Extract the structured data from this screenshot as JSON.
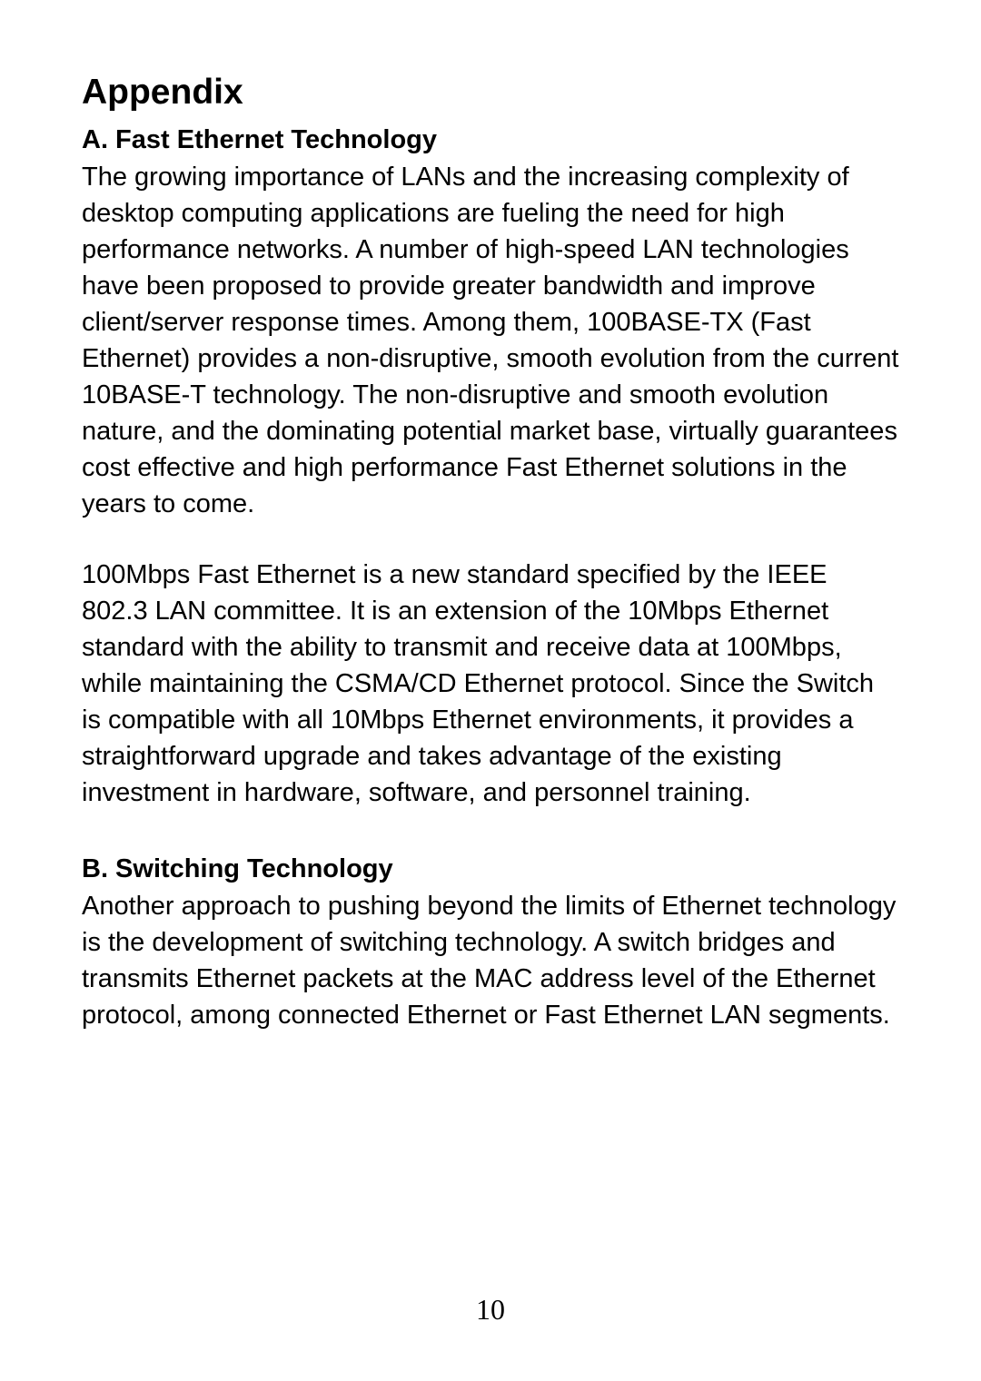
{
  "title": "Appendix",
  "sections": [
    {
      "heading": "A. Fast Ethernet Technology",
      "paragraphs": [
        "The growing importance of LANs and the increasing complexity of desktop computing applications are fueling the need for high performance networks. A number of high-speed LAN technologies have been proposed to provide greater bandwidth and improve client/server response times. Among them, 100BASE-TX (Fast Ethernet) provides a non-disruptive, smooth evolution from the current 10BASE-T technology. The non-disruptive and smooth evolution nature, and the dominating potential market base, virtually guarantees cost effective and high performance Fast Ethernet solutions in the years to come.",
        "100Mbps Fast Ethernet is a new standard specified by the IEEE 802.3 LAN committee. It is an extension of the 10Mbps Ethernet standard with the ability to transmit and receive data at 100Mbps, while maintaining the CSMA/CD Ethernet protocol. Since the Switch is compatible with all 10Mbps Ethernet environments, it provides a straightforward upgrade and takes advantage of the existing investment in hardware, software, and personnel training."
      ]
    },
    {
      "heading": "B. Switching Technology",
      "paragraphs": [
        "Another approach to pushing beyond the limits of Ethernet technology is the development of switching technology. A switch bridges and transmits Ethernet packets at the MAC address level of the Ethernet protocol, among connected Ethernet or Fast Ethernet LAN segments."
      ]
    }
  ],
  "page_number": "10",
  "colors": {
    "background": "#ffffff",
    "text": "#000000"
  },
  "typography": {
    "body_font": "Arial",
    "body_size_pt": 22,
    "title_size_pt": 30,
    "subheading_size_pt": 22,
    "page_number_font": "Times New Roman",
    "page_number_size_pt": 24
  }
}
